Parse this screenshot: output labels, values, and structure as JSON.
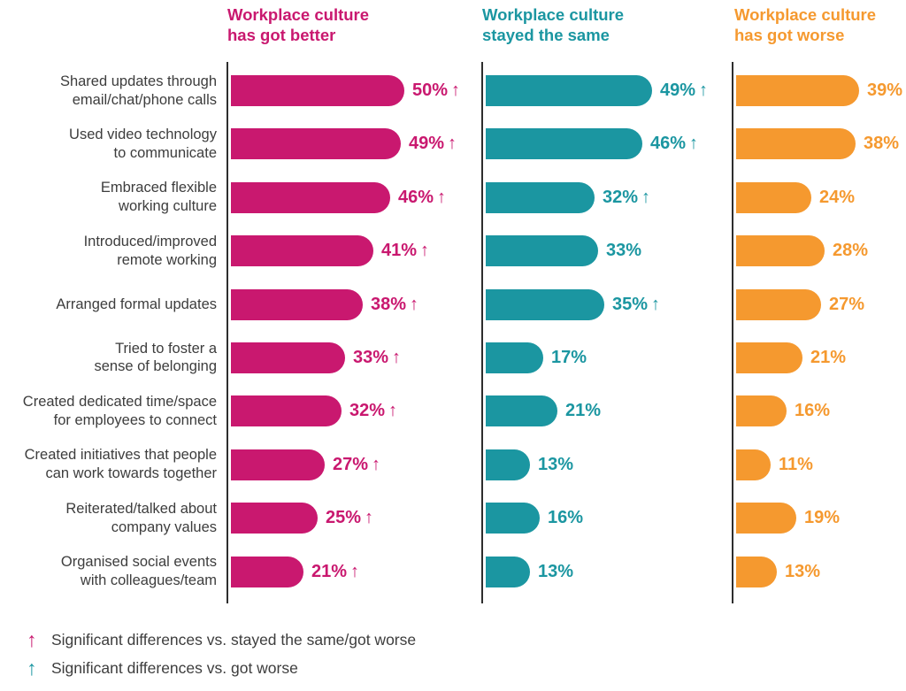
{
  "chart_data": {
    "type": "bar",
    "orientation": "horizontal",
    "unit": "%",
    "xlim": [
      0,
      50
    ],
    "grid": false,
    "significance_marker": "↑",
    "categories": [
      "Shared updates through\nemail/chat/phone calls",
      "Used video technology\nto communicate",
      "Embraced flexible\nworking culture",
      "Introduced/improved\nremote working",
      "Arranged formal updates",
      "Tried to foster a\nsense of belonging",
      "Created dedicated time/space\nfor employees to connect",
      "Created initiatives that people\ncan work towards together",
      "Reiterated/talked about\ncompany values",
      "Organised social events\nwith colleagues/team"
    ],
    "series": [
      {
        "name": "Workplace culture\nhas got better",
        "color": "#C9186F",
        "values": [
          50,
          49,
          46,
          41,
          38,
          33,
          32,
          27,
          25,
          21
        ],
        "significant": [
          true,
          true,
          true,
          true,
          true,
          true,
          true,
          true,
          true,
          true
        ]
      },
      {
        "name": "Workplace culture\nstayed the same",
        "color": "#1B96A1",
        "values": [
          49,
          46,
          32,
          33,
          35,
          17,
          21,
          13,
          16,
          13
        ],
        "significant": [
          true,
          true,
          true,
          false,
          true,
          false,
          false,
          false,
          false,
          false
        ]
      },
      {
        "name": "Workplace culture\nhas got worse",
        "color": "#F5992F",
        "values": [
          39,
          38,
          24,
          28,
          27,
          21,
          16,
          11,
          19,
          13
        ],
        "significant": [
          false,
          false,
          false,
          false,
          false,
          false,
          false,
          false,
          false,
          false
        ]
      }
    ]
  },
  "legend": {
    "items": [
      {
        "marker": "↑",
        "marker_color": "#C9186F",
        "label": "Significant differences vs. stayed the same/got worse"
      },
      {
        "marker": "↑",
        "marker_color": "#1B96A1",
        "label": "Significant differences vs. got worse"
      }
    ]
  }
}
